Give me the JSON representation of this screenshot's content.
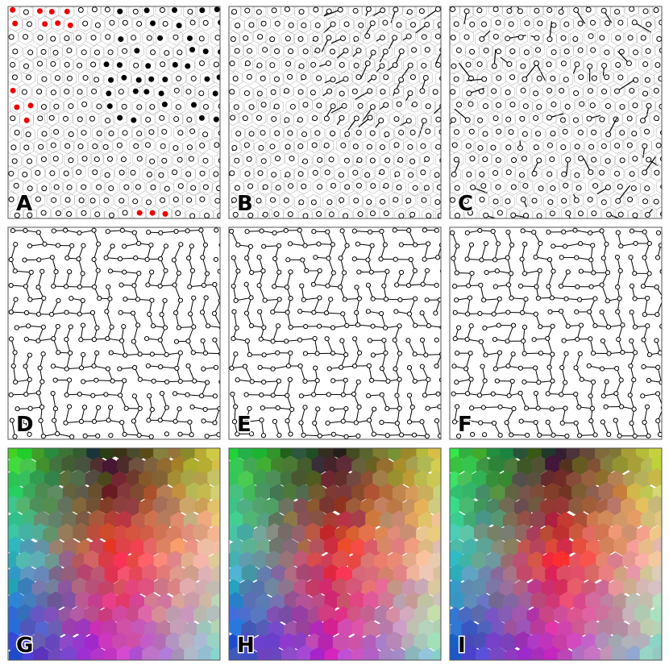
{
  "panels": [
    {
      "label": "A"
    },
    {
      "label": "B"
    },
    {
      "label": "C"
    },
    {
      "label": "D"
    },
    {
      "label": "E"
    },
    {
      "label": "F"
    },
    {
      "label": "G"
    },
    {
      "label": "H"
    },
    {
      "label": "I"
    }
  ]
}
